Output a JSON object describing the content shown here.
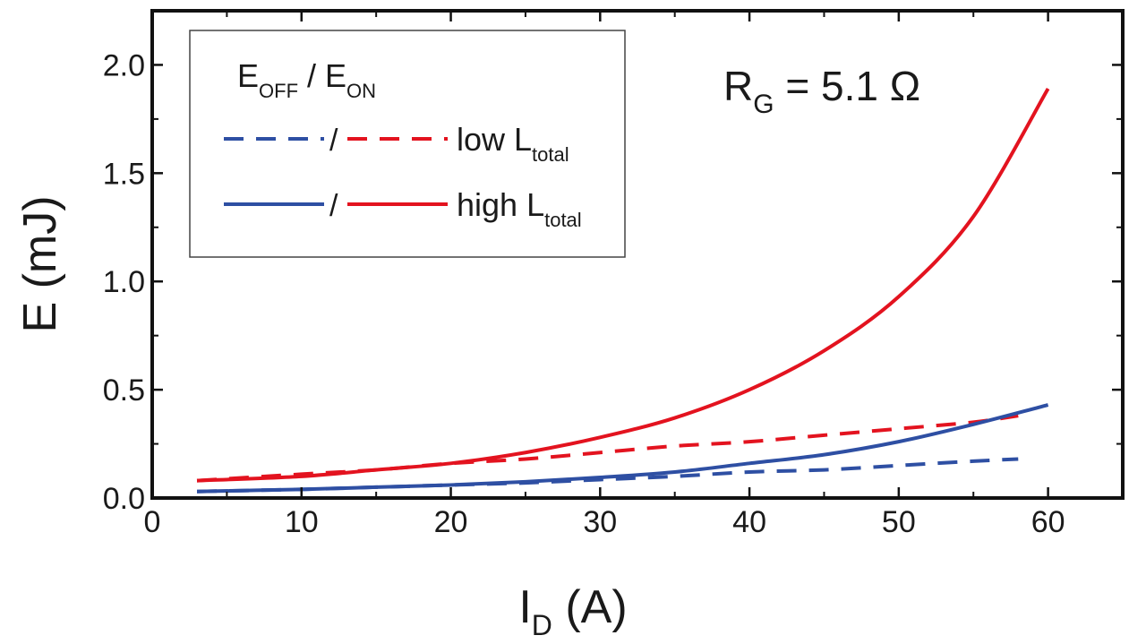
{
  "chart_data": {
    "type": "line",
    "xlabel": {
      "main": "I",
      "sub": "D",
      "unit": " (A)"
    },
    "ylabel": "E (mJ)",
    "xlim": [
      0,
      65
    ],
    "ylim": [
      0,
      2.25
    ],
    "x_ticks": [
      0,
      10,
      20,
      30,
      40,
      50,
      60
    ],
    "x_tick_labels": [
      "0",
      "10",
      "20",
      "30",
      "40",
      "50",
      "60"
    ],
    "y_ticks": [
      0.0,
      0.5,
      1.0,
      1.5,
      2.0
    ],
    "y_tick_labels": [
      "0.0",
      "0.5",
      "1.0",
      "1.5",
      "2.0"
    ],
    "grid": false,
    "legend_position": "top-left",
    "annotation": {
      "main": "R",
      "sub": "G",
      "rest": " = 5.1 Ω"
    },
    "legend": {
      "header": {
        "e1": "E",
        "s1": "OFF",
        "slash": " / ",
        "e2": "E",
        "s2": "ON"
      },
      "rows": [
        {
          "slash": "/",
          "label": "low L",
          "label_sub": "total",
          "dash": true
        },
        {
          "slash": "/",
          "label": "high L",
          "label_sub": "total",
          "dash": false
        }
      ]
    },
    "colors": {
      "E_OFF": "#2e4fa3",
      "E_ON": "#e3131f"
    },
    "series": [
      {
        "quantity": "E_ON",
        "condition": "high L_total",
        "style": "solid",
        "color": "#e3131f",
        "x": [
          3,
          10,
          15,
          20,
          25,
          30,
          35,
          40,
          45,
          50,
          55,
          60
        ],
        "y": [
          0.08,
          0.1,
          0.13,
          0.16,
          0.21,
          0.28,
          0.37,
          0.5,
          0.68,
          0.93,
          1.3,
          1.89
        ]
      },
      {
        "quantity": "E_ON",
        "condition": "low L_total",
        "style": "dashed",
        "color": "#e3131f",
        "x": [
          3,
          10,
          15,
          20,
          25,
          30,
          35,
          40,
          45,
          50,
          55,
          58
        ],
        "y": [
          0.08,
          0.11,
          0.13,
          0.16,
          0.18,
          0.21,
          0.24,
          0.26,
          0.29,
          0.32,
          0.35,
          0.38
        ]
      },
      {
        "quantity": "E_OFF",
        "condition": "high L_total",
        "style": "solid",
        "color": "#2e4fa3",
        "x": [
          3,
          10,
          15,
          20,
          25,
          30,
          35,
          40,
          45,
          50,
          55,
          60
        ],
        "y": [
          0.03,
          0.04,
          0.05,
          0.06,
          0.075,
          0.095,
          0.12,
          0.16,
          0.2,
          0.26,
          0.34,
          0.43
        ]
      },
      {
        "quantity": "E_OFF",
        "condition": "low L_total",
        "style": "dashed",
        "color": "#2e4fa3",
        "x": [
          3,
          10,
          15,
          20,
          25,
          30,
          35,
          40,
          45,
          50,
          55,
          58
        ],
        "y": [
          0.03,
          0.04,
          0.05,
          0.06,
          0.07,
          0.085,
          0.1,
          0.12,
          0.13,
          0.15,
          0.17,
          0.18
        ]
      }
    ]
  }
}
